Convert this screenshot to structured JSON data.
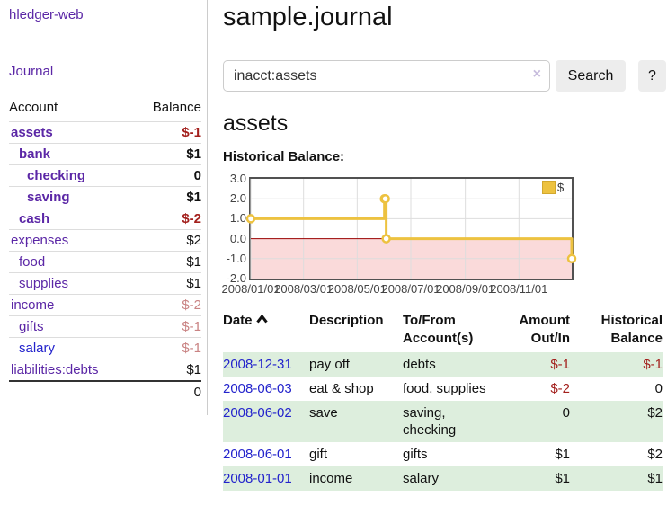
{
  "colors": {
    "link_purple": "#5b27a6",
    "link_blue": "#2323cc",
    "negative_strong": "#a3201d",
    "negative_muted": "#c98383",
    "row_stripe_green": "#ddeedd",
    "chart_line": "#edc240",
    "chart_negative_fill": "#fadada",
    "chart_zero_line": "#990000",
    "chart_grid": "#dddddd",
    "chart_border": "#515151"
  },
  "sidebar": {
    "home_link": "hledger-web",
    "journal_link": "Journal",
    "accounts": {
      "col_account": "Account",
      "col_balance": "Balance",
      "rows": [
        {
          "name": "assets",
          "balance": "$-1",
          "level": 1,
          "bold": true,
          "amount_style": "neg-strong",
          "link_style": "purple"
        },
        {
          "name": "bank",
          "balance": "$1",
          "level": 2,
          "bold": true,
          "amount_style": "pos",
          "link_style": "purple"
        },
        {
          "name": "checking",
          "balance": "0",
          "level": 3,
          "bold": true,
          "amount_style": "pos",
          "link_style": "purple"
        },
        {
          "name": "saving",
          "balance": "$1",
          "level": 3,
          "bold": true,
          "amount_style": "pos",
          "link_style": "purple"
        },
        {
          "name": "cash",
          "balance": "$-2",
          "level": 2,
          "bold": true,
          "amount_style": "neg-strong",
          "link_style": "purple"
        },
        {
          "name": "expenses",
          "balance": "$2",
          "level": 1,
          "bold": false,
          "amount_style": "pos",
          "link_style": "purple"
        },
        {
          "name": "food",
          "balance": "$1",
          "level": 2,
          "bold": false,
          "amount_style": "pos",
          "link_style": "purple"
        },
        {
          "name": "supplies",
          "balance": "$1",
          "level": 2,
          "bold": false,
          "amount_style": "pos",
          "link_style": "purple"
        },
        {
          "name": "income",
          "balance": "$-2",
          "level": 1,
          "bold": false,
          "amount_style": "neg-muted",
          "link_style": "purple"
        },
        {
          "name": "gifts",
          "balance": "$-1",
          "level": 2,
          "bold": false,
          "amount_style": "neg-muted",
          "link_style": "purple"
        },
        {
          "name": "salary",
          "balance": "$-1",
          "level": 2,
          "bold": false,
          "amount_style": "neg-muted",
          "link_style": "blue"
        },
        {
          "name": "liabilities:debts",
          "balance": "$1",
          "level": 1,
          "bold": false,
          "amount_style": "pos",
          "link_style": "purple"
        }
      ],
      "total": "0"
    }
  },
  "main": {
    "page_title": "sample.journal",
    "search": {
      "value": "inacct:assets",
      "clear_icon": "×",
      "search_button": "Search",
      "help_button": "?"
    },
    "account_heading": "assets",
    "chart_title": "Historical Balance:",
    "chart_data": {
      "type": "line",
      "step": true,
      "x_start": "2008-01-01",
      "x_end": "2008-12-31",
      "ylim": [
        -2,
        3
      ],
      "y_ticks": [
        "3.0",
        "2.0",
        "1.0",
        "0.0",
        "-1.0",
        "-2.0"
      ],
      "x_ticks": [
        "2008/01/01",
        "2008/03/01",
        "2008/05/01",
        "2008/07/01",
        "2008/09/01",
        "2008/11/01"
      ],
      "grid": true,
      "legend": {
        "label": "$",
        "position": "top-right",
        "swatch_icon": "legend-swatch"
      },
      "series": [
        {
          "name": "$",
          "points": [
            {
              "date": "2008-01-01",
              "value": 1
            },
            {
              "date": "2008-06-01",
              "value": 2
            },
            {
              "date": "2008-06-02",
              "value": 2
            },
            {
              "date": "2008-06-03",
              "value": 0
            },
            {
              "date": "2008-12-31",
              "value": -1
            }
          ]
        }
      ]
    },
    "register": {
      "headers": {
        "date": "Date",
        "date_sort_icon": "chevron-up",
        "description": "Description",
        "accounts": "To/From Account(s)",
        "amount": "Amount Out/In",
        "balance": "Historical Balance"
      },
      "rows": [
        {
          "date": "2008-12-31",
          "description": "pay off",
          "accounts": "debts",
          "amount": "$-1",
          "amount_style": "neg",
          "balance": "$-1",
          "balance_style": "neg",
          "shaded": true
        },
        {
          "date": "2008-06-03",
          "description": "eat & shop",
          "accounts": "food, supplies",
          "amount": "$-2",
          "amount_style": "neg",
          "balance": "0",
          "balance_style": "pos",
          "shaded": false
        },
        {
          "date": "2008-06-02",
          "description": "save",
          "accounts": "saving, checking",
          "amount": "0",
          "amount_style": "pos",
          "balance": "$2",
          "balance_style": "pos",
          "shaded": true
        },
        {
          "date": "2008-06-01",
          "description": "gift",
          "accounts": "gifts",
          "amount": "$1",
          "amount_style": "pos",
          "balance": "$2",
          "balance_style": "pos",
          "shaded": false
        },
        {
          "date": "2008-01-01",
          "description": "income",
          "accounts": "salary",
          "amount": "$1",
          "amount_style": "pos",
          "balance": "$1",
          "balance_style": "pos",
          "shaded": true
        }
      ]
    }
  }
}
